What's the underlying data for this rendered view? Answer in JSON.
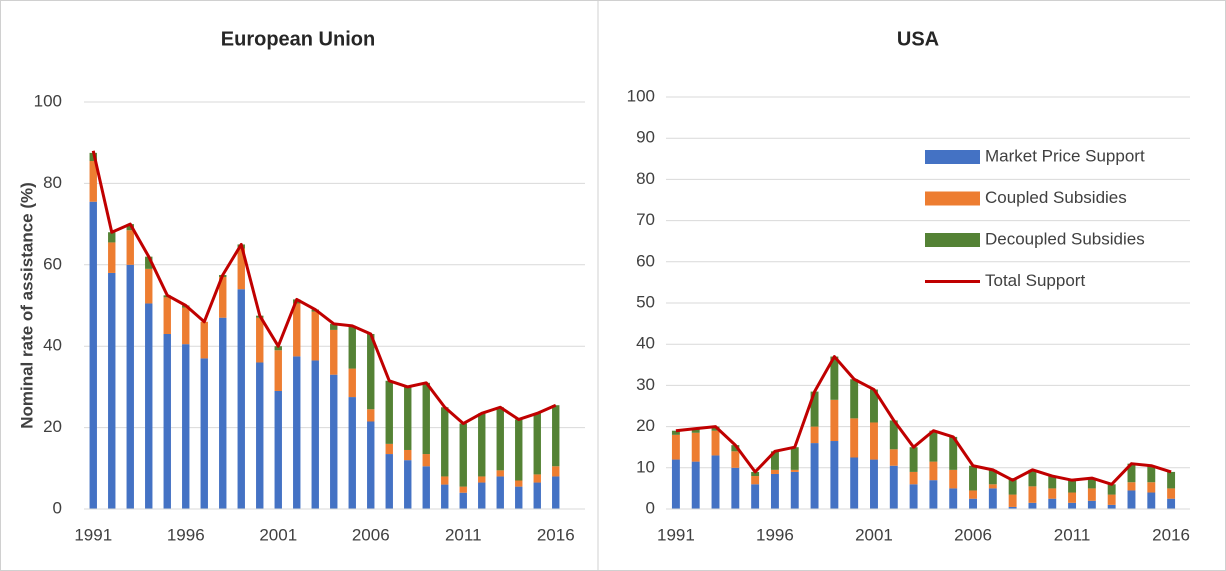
{
  "chart_data": [
    {
      "type": "bar",
      "stacked": true,
      "title": "European Union",
      "y_label": "Nominal rate of assistance (%)",
      "categories": [
        "1991",
        null,
        null,
        null,
        null,
        "1996",
        null,
        null,
        null,
        null,
        "2001",
        null,
        null,
        null,
        null,
        "2006",
        null,
        null,
        null,
        null,
        "2011",
        null,
        null,
        null,
        null,
        "2016"
      ],
      "ylim": [
        0,
        100
      ],
      "yticks": [
        0,
        20,
        40,
        60,
        80,
        100
      ],
      "grid": true,
      "series": [
        {
          "name": "Market Price Support",
          "type": "bar",
          "color": "#4472c4",
          "values": [
            75.5,
            58,
            60,
            50.5,
            43,
            40.5,
            37,
            47,
            54,
            36,
            29,
            37.5,
            36.5,
            33,
            27.5,
            21.5,
            13.5,
            12,
            10.5,
            6,
            4,
            6.5,
            8,
            5.5,
            6.5,
            8
          ]
        },
        {
          "name": "Coupled Subsidies",
          "type": "bar",
          "color": "#ed7d31",
          "values": [
            10,
            7.5,
            8.5,
            8.5,
            9,
            9,
            9,
            10,
            10,
            11,
            10,
            13,
            12,
            11,
            7,
            3,
            2.5,
            2.5,
            3,
            2,
            1.5,
            1.5,
            1.5,
            1.5,
            2,
            2.5
          ]
        },
        {
          "name": "Decoupled Subsidies",
          "type": "bar",
          "color": "#548235",
          "values": [
            2,
            2.5,
            1.5,
            3,
            0.5,
            0.5,
            0,
            0.5,
            1,
            0.5,
            1,
            1,
            0.5,
            1.5,
            10.5,
            18.5,
            15.5,
            15.5,
            17.5,
            17,
            15.5,
            15.5,
            15.5,
            15,
            15,
            15
          ]
        },
        {
          "name": "Total Support",
          "type": "line",
          "color": "#c00000",
          "values": [
            88,
            68,
            70,
            62,
            52.5,
            50,
            46,
            57.5,
            65,
            47.5,
            40,
            51.5,
            49,
            45.5,
            45,
            43,
            31.5,
            30,
            31,
            25,
            21,
            23.5,
            25,
            22,
            23.5,
            25.5
          ]
        }
      ]
    },
    {
      "type": "bar",
      "stacked": true,
      "title": "USA",
      "categories": [
        "1991",
        null,
        null,
        null,
        null,
        "1996",
        null,
        null,
        null,
        null,
        "2001",
        null,
        null,
        null,
        null,
        "2006",
        null,
        null,
        null,
        null,
        "2011",
        null,
        null,
        null,
        null,
        "2016"
      ],
      "ylim": [
        0,
        100
      ],
      "yticks": [
        0,
        10,
        20,
        30,
        40,
        50,
        60,
        70,
        80,
        90,
        100
      ],
      "grid": true,
      "legend": "upper right",
      "series": [
        {
          "name": "Market Price Support",
          "type": "bar",
          "color": "#4472c4",
          "values": [
            12,
            11.5,
            13,
            10,
            6,
            8.5,
            9,
            16,
            16.5,
            12.5,
            12,
            10.5,
            6,
            7,
            5,
            2.5,
            5,
            0.5,
            1.5,
            2.5,
            1.5,
            2,
            1,
            4.5,
            4,
            2.5
          ]
        },
        {
          "name": "Coupled Subsidies",
          "type": "bar",
          "color": "#ed7d31",
          "values": [
            6,
            7,
            6,
            4,
            2,
            1,
            0.5,
            4,
            10,
            9.5,
            9,
            4,
            3,
            4.5,
            4.5,
            2,
            1,
            3,
            4,
            2.5,
            2.5,
            3,
            2.5,
            2,
            2.5,
            2.5
          ]
        },
        {
          "name": "Decoupled Subsidies",
          "type": "bar",
          "color": "#548235",
          "values": [
            1,
            1,
            1,
            1.5,
            1,
            4.5,
            5.5,
            8.5,
            10.5,
            9.5,
            8,
            7,
            6,
            7.5,
            8,
            6,
            3.5,
            4,
            4,
            3,
            3,
            2.5,
            2.5,
            4.5,
            4,
            4
          ]
        },
        {
          "name": "Total Support",
          "type": "line",
          "color": "#c00000",
          "values": [
            19,
            19.5,
            20,
            15.5,
            9,
            14,
            15,
            28.5,
            37,
            31.5,
            29,
            21.5,
            15,
            19,
            17.5,
            10.5,
            9.5,
            7,
            9.5,
            8,
            7,
            7.5,
            6,
            11,
            10.5,
            9
          ]
        }
      ]
    }
  ]
}
